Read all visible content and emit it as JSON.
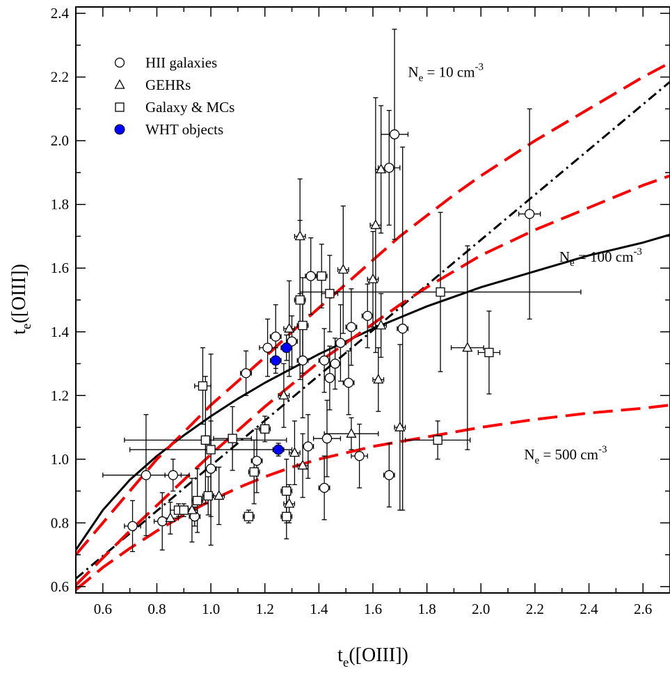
{
  "chart_data": {
    "type": "scatter",
    "xlabel": {
      "main": "t",
      "sub": "e",
      "rest": "([OIII])"
    },
    "ylabel": {
      "main": "t",
      "sub": "e",
      "rest": "([OIII])"
    },
    "xlim": [
      0.5,
      2.7
    ],
    "ylim": [
      0.58,
      2.42
    ],
    "xticks": [
      0.6,
      0.8,
      1.0,
      1.2,
      1.4,
      1.6,
      1.8,
      2.0,
      2.2,
      2.4,
      2.6
    ],
    "xtick_labels": [
      "0.6",
      "0.8",
      "1.0",
      "1.2",
      "1.4",
      "1.6",
      "1.8",
      "2.0",
      "2.2",
      "2.4",
      "2.6"
    ],
    "yticks": [
      0.6,
      0.8,
      1.0,
      1.2,
      1.4,
      1.6,
      1.8,
      2.0,
      2.2,
      2.4
    ],
    "ytick_labels": [
      "0.6",
      "0.8",
      "1.0",
      "1.2",
      "1.4",
      "1.6",
      "1.8",
      "2.0",
      "2.2",
      "2.4"
    ],
    "grid": false,
    "legend_position": "top-left",
    "legend": [
      {
        "label": "HII galaxies",
        "marker": "circle"
      },
      {
        "label": "GEHRs",
        "marker": "triangle"
      },
      {
        "label": "Galaxy & MCs",
        "marker": "square"
      },
      {
        "label": "WHT objects",
        "marker": "filled-circle"
      }
    ],
    "annotations": [
      {
        "main": "N",
        "sub": "e",
        "text": " = 10 cm",
        "sup": "-3",
        "x": 1.73,
        "y": 2.2
      },
      {
        "main": "N",
        "sub": "e",
        "text": " = 100 cm",
        "sup": "-3",
        "x": 2.29,
        "y": 1.62
      },
      {
        "main": "N",
        "sub": "e",
        "text": " = 500 cm",
        "sup": "-3",
        "x": 2.16,
        "y": 1.0
      }
    ],
    "colors": {
      "model_lines": "#ff0000",
      "wht": "#0000ff",
      "fit": "#000000"
    },
    "lines": [
      {
        "style": "dash-dot",
        "color": "#000000",
        "x": [
          0.5,
          2.7
        ],
        "y": [
          0.625,
          2.185
        ]
      },
      {
        "style": "solid",
        "color": "#000000",
        "x": [
          0.5,
          0.6,
          0.7,
          0.8,
          0.9,
          1.0,
          1.1,
          1.2,
          1.3,
          1.4,
          1.5,
          1.6,
          1.7,
          1.8,
          1.9,
          2.0,
          2.1,
          2.2,
          2.3,
          2.4,
          2.5,
          2.6,
          2.7
        ],
        "y": [
          0.715,
          0.84,
          0.935,
          1.01,
          1.075,
          1.135,
          1.19,
          1.24,
          1.285,
          1.33,
          1.37,
          1.41,
          1.445,
          1.48,
          1.51,
          1.54,
          1.565,
          1.59,
          1.615,
          1.64,
          1.66,
          1.68,
          1.705
        ]
      },
      {
        "style": "dashed",
        "color": "#ff0000",
        "label": "Ne = 10",
        "x": [
          0.5,
          0.6,
          0.7,
          0.8,
          0.9,
          1.0,
          1.1,
          1.2,
          1.3,
          1.4,
          1.5,
          1.6,
          1.7,
          1.8,
          1.9,
          2.0,
          2.2,
          2.4,
          2.6,
          2.7
        ],
        "y": [
          0.7,
          0.8,
          0.9,
          1.0,
          1.085,
          1.17,
          1.245,
          1.32,
          1.4,
          1.475,
          1.55,
          1.625,
          1.7,
          1.765,
          1.83,
          1.89,
          2.0,
          2.1,
          2.2,
          2.245
        ]
      },
      {
        "style": "dashed",
        "color": "#ff0000",
        "label": "Ne = 100",
        "x": [
          0.5,
          0.6,
          0.7,
          0.8,
          0.9,
          1.0,
          1.1,
          1.2,
          1.3,
          1.4,
          1.5,
          1.6,
          1.7,
          1.8,
          1.9,
          2.0,
          2.2,
          2.4,
          2.6,
          2.7
        ],
        "y": [
          0.605,
          0.69,
          0.775,
          0.855,
          0.935,
          1.015,
          1.09,
          1.165,
          1.235,
          1.305,
          1.365,
          1.425,
          1.485,
          1.54,
          1.59,
          1.64,
          1.72,
          1.79,
          1.86,
          1.89
        ]
      },
      {
        "style": "dashed",
        "color": "#ff0000",
        "label": "Ne = 500",
        "x": [
          0.5,
          0.6,
          0.7,
          0.8,
          0.9,
          1.0,
          1.1,
          1.2,
          1.3,
          1.4,
          1.5,
          1.6,
          1.7,
          1.8,
          1.9,
          2.0,
          2.2,
          2.4,
          2.6,
          2.7
        ],
        "y": [
          0.59,
          0.66,
          0.72,
          0.775,
          0.825,
          0.87,
          0.91,
          0.945,
          0.975,
          1.0,
          1.02,
          1.04,
          1.055,
          1.07,
          1.085,
          1.1,
          1.125,
          1.145,
          1.16,
          1.17
        ]
      }
    ],
    "series": [
      {
        "name": "HII galaxies",
        "marker": "circle",
        "points": [
          {
            "x": 0.71,
            "y": 0.79,
            "ey": 0.08,
            "ex": 0.03
          },
          {
            "x": 0.76,
            "y": 0.95,
            "ey": 0.19,
            "ex": 0.16
          },
          {
            "x": 0.82,
            "y": 0.805,
            "ey": 0.09,
            "ex": 0.03
          },
          {
            "x": 0.86,
            "y": 0.95,
            "ey": 0.05,
            "ex": 0.03
          },
          {
            "x": 0.94,
            "y": 0.82,
            "ey": 0.03,
            "ex": 0.02
          },
          {
            "x": 1.0,
            "y": 0.97,
            "ey": 0.15,
            "ex": 0.02
          },
          {
            "x": 1.13,
            "y": 1.27,
            "ey": 0.07,
            "ex": 0.02
          },
          {
            "x": 1.17,
            "y": 0.995,
            "ey": 0.1,
            "ex": 0.02
          },
          {
            "x": 1.21,
            "y": 1.35,
            "ey": 0.09,
            "ex": 0.03
          },
          {
            "x": 1.24,
            "y": 1.385,
            "ey": 0.1,
            "ex": 0.02
          },
          {
            "x": 1.3,
            "y": 1.37,
            "ey": 0.08,
            "ex": 0.02
          },
          {
            "x": 1.34,
            "y": 1.31,
            "ey": 0.18,
            "ex": 0.02
          },
          {
            "x": 1.36,
            "y": 1.04,
            "ey": 0.1,
            "ex": 0.02
          },
          {
            "x": 1.37,
            "y": 1.575,
            "ey": 0.12,
            "ex": 0.02
          },
          {
            "x": 1.42,
            "y": 1.31,
            "ey": 0.1,
            "ex": 0.02
          },
          {
            "x": 1.42,
            "y": 0.91,
            "ey": 0.1,
            "ex": 0.02
          },
          {
            "x": 1.43,
            "y": 1.065,
            "ey": 0.12,
            "ex": 0.05
          },
          {
            "x": 1.44,
            "y": 1.255,
            "ey": 0.1,
            "ex": 0.02
          },
          {
            "x": 1.46,
            "y": 1.3,
            "ey": 0.08,
            "ex": 0.02
          },
          {
            "x": 1.48,
            "y": 1.365,
            "ey": 0.12,
            "ex": 0.02
          },
          {
            "x": 1.51,
            "y": 1.24,
            "ey": 0.1,
            "ex": 0.02
          },
          {
            "x": 1.52,
            "y": 1.415,
            "ey": 0.12,
            "ex": 0.02
          },
          {
            "x": 1.55,
            "y": 1.01,
            "ey": 0.1,
            "ex": 0.03
          },
          {
            "x": 1.58,
            "y": 1.45,
            "ey": 0.1,
            "ex": 0.02
          },
          {
            "x": 1.66,
            "y": 0.95,
            "ey": 0.1,
            "ex": 0.02
          },
          {
            "x": 1.66,
            "y": 1.915,
            "ey": 0.18,
            "ex": 0.04
          },
          {
            "x": 1.68,
            "y": 2.02,
            "ey": 0.33,
            "ex": 0.05
          },
          {
            "x": 1.71,
            "y": 1.41,
            "ey": 0.57,
            "ex": 0.02
          },
          {
            "x": 2.18,
            "y": 1.77,
            "ey": 0.33,
            "ex": 0.04
          }
        ]
      },
      {
        "name": "GEHRs",
        "marker": "triangle",
        "points": [
          {
            "x": 0.85,
            "y": 0.815,
            "ey": 0.05,
            "ex": 0.03
          },
          {
            "x": 0.93,
            "y": 0.84,
            "ey": 0.1,
            "ex": 0.02
          },
          {
            "x": 1.03,
            "y": 0.885,
            "ey": 0.09,
            "ex": 0.02
          },
          {
            "x": 1.27,
            "y": 1.2,
            "ey": 0.1,
            "ex": 0.02
          },
          {
            "x": 1.29,
            "y": 1.41,
            "ey": 0.15,
            "ex": 0.02
          },
          {
            "x": 1.29,
            "y": 0.86,
            "ey": 0.06,
            "ex": 0.02
          },
          {
            "x": 1.31,
            "y": 1.02,
            "ey": 0.1,
            "ex": 0.02
          },
          {
            "x": 1.33,
            "y": 1.7,
            "ey": 0.18,
            "ex": 0.02
          },
          {
            "x": 1.34,
            "y": 0.98,
            "ey": 0.1,
            "ex": 0.02
          },
          {
            "x": 1.49,
            "y": 1.595,
            "ey": 0.2,
            "ex": 0.02
          },
          {
            "x": 1.52,
            "y": 1.08,
            "ey": 0.05,
            "ex": 0.1
          },
          {
            "x": 1.6,
            "y": 1.565,
            "ey": 0.15,
            "ex": 0.02
          },
          {
            "x": 1.61,
            "y": 1.735,
            "ey": 0.4,
            "ex": 0.02
          },
          {
            "x": 1.62,
            "y": 1.25,
            "ey": 0.1,
            "ex": 0.02
          },
          {
            "x": 1.63,
            "y": 1.42,
            "ey": 0.1,
            "ex": 0.02
          },
          {
            "x": 1.63,
            "y": 1.91,
            "ey": 0.2,
            "ex": 0.02
          },
          {
            "x": 1.7,
            "y": 1.1,
            "ey": 0.26,
            "ex": 0.02
          },
          {
            "x": 1.95,
            "y": 1.35,
            "ey": 0.32,
            "ex": 0.06
          }
        ]
      },
      {
        "name": "Galaxy & MCs",
        "marker": "square",
        "points": [
          {
            "x": 0.88,
            "y": 0.84,
            "ey": 0.02,
            "ex": 0.03
          },
          {
            "x": 0.9,
            "y": 0.84,
            "ey": 0.02,
            "ex": 0.02
          },
          {
            "x": 0.95,
            "y": 0.87,
            "ey": 0.1,
            "ex": 0.02
          },
          {
            "x": 0.97,
            "y": 1.23,
            "ey": 0.12,
            "ex": 0.03
          },
          {
            "x": 0.98,
            "y": 1.06,
            "ey": 0.2,
            "ex": 0.3
          },
          {
            "x": 0.99,
            "y": 0.885,
            "ey": 0.06,
            "ex": 0.02
          },
          {
            "x": 1.0,
            "y": 1.03,
            "ey": 0.3,
            "ex": 0.3
          },
          {
            "x": 1.08,
            "y": 1.065,
            "ey": 0.1,
            "ex": 0.07
          },
          {
            "x": 1.14,
            "y": 0.82,
            "ey": 0.02,
            "ex": 0.02
          },
          {
            "x": 1.16,
            "y": 0.96,
            "ey": 0.1,
            "ex": 0.02
          },
          {
            "x": 1.2,
            "y": 1.095,
            "ey": 0.04,
            "ex": 0.02
          },
          {
            "x": 1.28,
            "y": 0.82,
            "ey": 0.07,
            "ex": 0.02
          },
          {
            "x": 1.28,
            "y": 0.9,
            "ey": 0.1,
            "ex": 0.02
          },
          {
            "x": 1.33,
            "y": 1.5,
            "ey": 0.25,
            "ex": 0.02
          },
          {
            "x": 1.34,
            "y": 1.42,
            "ey": 0.15,
            "ex": 0.02
          },
          {
            "x": 1.41,
            "y": 1.575,
            "ey": 0.1,
            "ex": 0.02
          },
          {
            "x": 1.44,
            "y": 1.52,
            "ey": 0.12,
            "ex": 0.03
          },
          {
            "x": 1.84,
            "y": 1.06,
            "ey": 0.06,
            "ex": 0.12
          },
          {
            "x": 1.85,
            "y": 1.525,
            "ey": 0.25,
            "ex": 0.52
          },
          {
            "x": 2.03,
            "y": 1.335,
            "ey": 0.13,
            "ex": 0.04
          }
        ]
      },
      {
        "name": "WHT objects",
        "marker": "filled-circle",
        "points": [
          {
            "x": 1.24,
            "y": 1.31,
            "ey": 0.04,
            "ex": 0.02
          },
          {
            "x": 1.25,
            "y": 1.03,
            "ey": 0.02,
            "ex": 0.02
          },
          {
            "x": 1.28,
            "y": 1.35,
            "ey": 0.04,
            "ex": 0.02
          }
        ]
      }
    ]
  }
}
